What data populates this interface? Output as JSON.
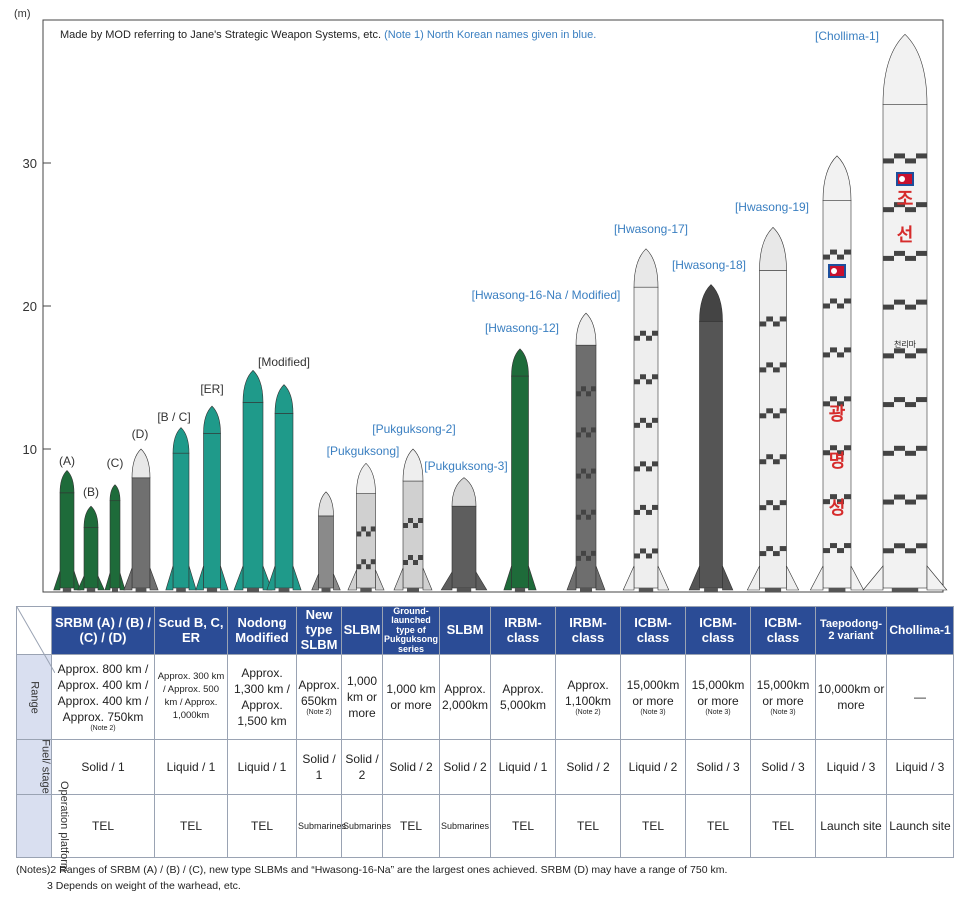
{
  "chart_data": {
    "type": "bar",
    "description_note": "Made by MOD referring to Jane's Strategic Weapon Systems, etc.",
    "blue_note": "(Note 1) North Korean names given in blue.",
    "ylabel": "(m)",
    "ylim": [
      0,
      40
    ],
    "yticks": [
      "10",
      "20",
      "30"
    ],
    "grid": false,
    "categories": [
      "(A)",
      "(B)",
      "(C)",
      "(D)",
      "[B / C]",
      "[ER]",
      "",
      "[Modified]",
      "",
      "[Pukguksong]",
      "[Pukguksong-2]",
      "[Pukguksong-3]",
      "[Hwasong-12]",
      "[Hwasong-16-Na / Modified]",
      "[Hwasong-17]",
      "[Hwasong-18]",
      "[Hwasong-19]",
      "",
      "[Chollima-1]"
    ],
    "values": [
      8.5,
      6.0,
      7.5,
      10.0,
      11.5,
      13.0,
      15.5,
      14.5,
      7.0,
      9.0,
      10.0,
      8.0,
      17.0,
      19.5,
      24.0,
      21.5,
      25.5,
      30.5,
      39.0
    ]
  },
  "table": {
    "columns": [
      "SRBM (A) / (B) / (C) / (D)",
      "Scud B, C, ER",
      "Nodong Modified",
      "New type SLBM",
      "SLBM",
      "Ground-launched type of Pukguksong series",
      "SLBM",
      "IRBM-class",
      "IRBM-class",
      "ICBM-class",
      "ICBM-class",
      "ICBM-class",
      "Taepodong-2 variant",
      "Chollima-1"
    ],
    "row_labels": [
      "Range",
      "Fuel/ stage",
      "Operation platform"
    ],
    "range": [
      "Approx. 800 km / Approx. 400 km / Approx. 400 km / Approx. 750km",
      "Approx. 300 km / Approx. 500 km / Approx. 1,000km",
      "Approx. 1,300 km / Approx. 1,500 km",
      "Approx. 650km",
      "1,000 km or more",
      "1,000 km or more",
      "Approx. 2,000km",
      "Approx. 5,000km",
      "Approx. 1,100km",
      "15,000km or more",
      "15,000km or more",
      "15,000km or more",
      "10,000km or more",
      "—"
    ],
    "range_notes": [
      "(Note 2)",
      "",
      "",
      "(Note 2)",
      "",
      "",
      "",
      "",
      "(Note 2)",
      "(Note 3)",
      "(Note 3)",
      "(Note 3)",
      "",
      ""
    ],
    "fuel": [
      "Solid / 1",
      "Liquid / 1",
      "Liquid / 1",
      "Solid / 1",
      "Solid / 2",
      "Solid / 2",
      "Solid / 2",
      "Liquid / 1",
      "Solid / 2",
      "Liquid / 2",
      "Solid / 3",
      "Solid / 3",
      "Liquid / 3",
      "Liquid / 3"
    ],
    "platform": [
      "TEL",
      "TEL",
      "TEL",
      "Submarines",
      "Submarines",
      "TEL",
      "Submarines",
      "TEL",
      "TEL",
      "TEL",
      "TEL",
      "TEL",
      "Launch site",
      "Launch site"
    ]
  },
  "notes": {
    "line1": "(Notes)2 Ranges of SRBM (A) / (B) / (C), new type SLBMs and “Hwasong-16-Na” are the largest ones achieved. SRBM (D) may have a range of 750 km.",
    "line2": "3 Depends on weight of the warhead, etc."
  },
  "colors": {
    "header_bg": "#2b4c96",
    "north_korean_label": "#3a7fc1",
    "teal_missile": "#1f9a8a",
    "dark_green_missile": "#1e6b3a",
    "grey_missile": "#6e6e6e",
    "white_rocket": "#eeeeee"
  },
  "rocket_markings": {
    "taepodong": [
      "광",
      "명",
      "성"
    ],
    "chollima": [
      "조",
      "선"
    ],
    "chollima_logo": "천리마"
  }
}
